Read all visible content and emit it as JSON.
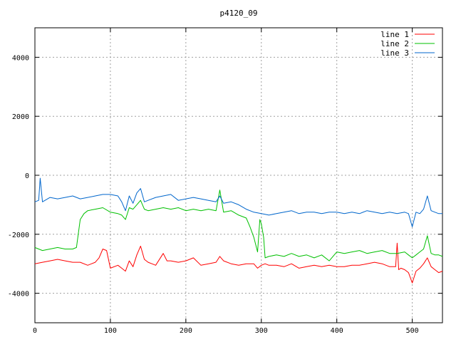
{
  "chart_data": {
    "type": "line",
    "title": "p4120_09",
    "xlabel": "",
    "ylabel": "",
    "xlim": [
      0,
      540
    ],
    "ylim": [
      -5000,
      5000
    ],
    "xticks": [
      0,
      100,
      200,
      300,
      400,
      500
    ],
    "yticks": [
      -4000,
      -2000,
      0,
      2000,
      4000
    ],
    "grid": true,
    "legend_position": "top-right",
    "series": [
      {
        "name": "line 1",
        "color": "#ff0000",
        "x": [
          0,
          10,
          20,
          30,
          40,
          50,
          60,
          70,
          80,
          85,
          90,
          95,
          100,
          110,
          115,
          120,
          125,
          130,
          135,
          140,
          145,
          150,
          155,
          160,
          170,
          175,
          180,
          190,
          200,
          210,
          220,
          230,
          240,
          245,
          250,
          260,
          270,
          280,
          290,
          295,
          300,
          305,
          310,
          320,
          330,
          340,
          350,
          360,
          370,
          380,
          390,
          400,
          410,
          420,
          430,
          440,
          450,
          460,
          470,
          478,
          480,
          482,
          485,
          490,
          495,
          500,
          505,
          510,
          515,
          520,
          525,
          530,
          535,
          540
        ],
        "y": [
          -3000,
          -2950,
          -2900,
          -2850,
          -2900,
          -2950,
          -2950,
          -3050,
          -2950,
          -2800,
          -2500,
          -2550,
          -3150,
          -3050,
          -3150,
          -3250,
          -2900,
          -3100,
          -2700,
          -2400,
          -2850,
          -2950,
          -3000,
          -3050,
          -2650,
          -2900,
          -2900,
          -2950,
          -2900,
          -2800,
          -3050,
          -3000,
          -2950,
          -2750,
          -2900,
          -3000,
          -3050,
          -3000,
          -3000,
          -3150,
          -3050,
          -3000,
          -3050,
          -3050,
          -3100,
          -3000,
          -3150,
          -3100,
          -3050,
          -3100,
          -3050,
          -3100,
          -3100,
          -3050,
          -3050,
          -3000,
          -2950,
          -3000,
          -3100,
          -3100,
          -2300,
          -3200,
          -3150,
          -3200,
          -3300,
          -3650,
          -3250,
          -3150,
          -3000,
          -2800,
          -3100,
          -3200,
          -3300,
          -3250
        ]
      },
      {
        "name": "line 2",
        "color": "#00c000",
        "x": [
          0,
          10,
          20,
          30,
          40,
          50,
          55,
          60,
          65,
          70,
          80,
          90,
          100,
          110,
          115,
          120,
          125,
          130,
          135,
          140,
          145,
          150,
          160,
          170,
          180,
          190,
          200,
          210,
          220,
          230,
          240,
          245,
          250,
          260,
          270,
          280,
          285,
          290,
          295,
          298,
          300,
          303,
          305,
          310,
          320,
          330,
          340,
          350,
          360,
          370,
          380,
          390,
          400,
          410,
          420,
          430,
          440,
          450,
          460,
          470,
          480,
          490,
          495,
          500,
          505,
          510,
          515,
          520,
          525,
          530,
          535,
          540
        ],
        "y": [
          -2450,
          -2550,
          -2500,
          -2450,
          -2500,
          -2500,
          -2450,
          -1500,
          -1300,
          -1200,
          -1150,
          -1100,
          -1250,
          -1300,
          -1350,
          -1500,
          -1100,
          -1150,
          -1000,
          -850,
          -1150,
          -1200,
          -1150,
          -1100,
          -1150,
          -1100,
          -1200,
          -1150,
          -1200,
          -1150,
          -1200,
          -500,
          -1250,
          -1200,
          -1350,
          -1450,
          -1750,
          -2100,
          -2600,
          -1500,
          -1650,
          -2100,
          -2800,
          -2750,
          -2700,
          -2750,
          -2650,
          -2750,
          -2700,
          -2800,
          -2700,
          -2900,
          -2600,
          -2650,
          -2600,
          -2550,
          -2650,
          -2600,
          -2550,
          -2650,
          -2650,
          -2600,
          -2700,
          -2800,
          -2700,
          -2600,
          -2500,
          -2050,
          -2650,
          -2700,
          -2700,
          -2750
        ]
      },
      {
        "name": "line 3",
        "color": "#0066cc",
        "x": [
          0,
          5,
          7,
          10,
          20,
          30,
          40,
          50,
          60,
          70,
          80,
          90,
          100,
          110,
          115,
          120,
          125,
          130,
          135,
          140,
          145,
          150,
          160,
          170,
          180,
          190,
          200,
          210,
          220,
          230,
          240,
          245,
          250,
          260,
          270,
          280,
          290,
          300,
          310,
          320,
          330,
          340,
          350,
          360,
          370,
          380,
          390,
          400,
          410,
          420,
          430,
          440,
          450,
          460,
          470,
          480,
          490,
          495,
          500,
          505,
          510,
          515,
          520,
          525,
          530,
          535,
          540
        ],
        "y": [
          -900,
          -850,
          -100,
          -900,
          -750,
          -800,
          -750,
          -700,
          -800,
          -750,
          -700,
          -650,
          -650,
          -700,
          -900,
          -1200,
          -700,
          -950,
          -600,
          -450,
          -900,
          -850,
          -750,
          -700,
          -650,
          -850,
          -800,
          -750,
          -800,
          -850,
          -900,
          -700,
          -950,
          -900,
          -1000,
          -1150,
          -1250,
          -1300,
          -1350,
          -1300,
          -1250,
          -1200,
          -1300,
          -1250,
          -1250,
          -1300,
          -1250,
          -1250,
          -1300,
          -1250,
          -1300,
          -1200,
          -1250,
          -1300,
          -1250,
          -1300,
          -1250,
          -1300,
          -1750,
          -1250,
          -1300,
          -1150,
          -700,
          -1200,
          -1250,
          -1300,
          -1300
        ]
      }
    ]
  }
}
